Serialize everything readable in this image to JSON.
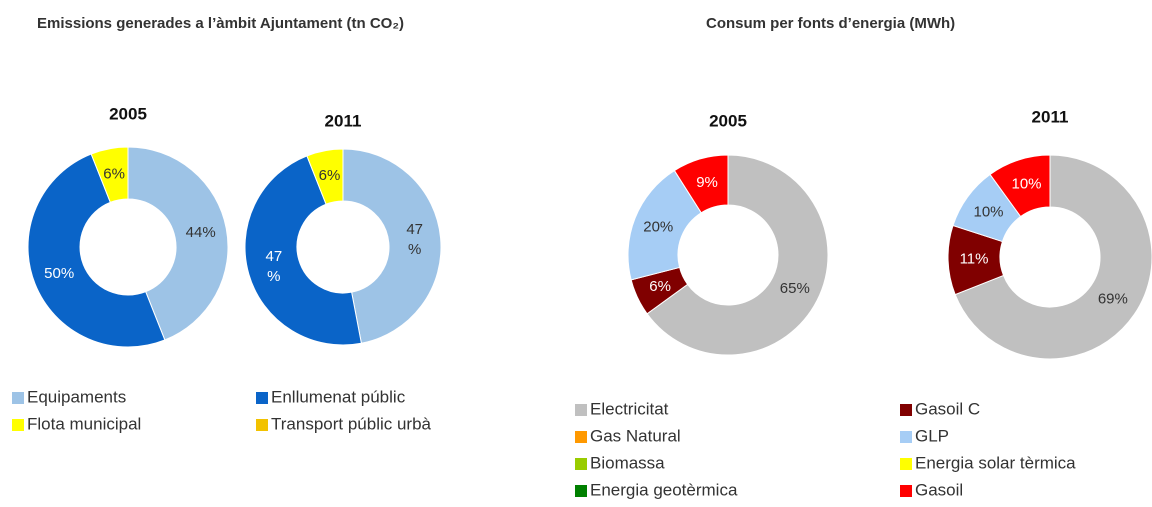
{
  "headings": [
    "Emissions generades a l’àmbit Ajuntament (tn CO₂)",
    "Consum per fonts d’energia (MWh)"
  ],
  "chart_data": [
    {
      "type": "donut",
      "title": "2005",
      "categories": [
        "Equipaments",
        "Enllumenat públic",
        "Flota municipal",
        "Transport públic urbà"
      ],
      "colors": [
        "#9dc3e6",
        "#0a64c8",
        "#ffff00",
        "#f2c200"
      ],
      "values": [
        44,
        50,
        6,
        0
      ],
      "value_labels": [
        "44%",
        "50%",
        "6%",
        null
      ]
    },
    {
      "type": "donut",
      "title": "2011",
      "categories": [
        "Equipaments",
        "Enllumenat públic",
        "Flota municipal",
        "Transport públic urbà"
      ],
      "colors": [
        "#9dc3e6",
        "#0a64c8",
        "#ffff00",
        "#f2c200"
      ],
      "values": [
        47,
        47,
        6,
        0
      ],
      "value_labels": [
        "47\n%",
        "47\n%",
        "6%",
        null
      ]
    },
    {
      "type": "donut",
      "title": "2005",
      "categories": [
        "Electricitat",
        "Gasoil C",
        "Gas Natural",
        "GLP",
        "Biomassa",
        "Energia solar tèrmica",
        "Energia geotèrmica",
        "Gasoil"
      ],
      "colors": [
        "#c0c0c0",
        "#800000",
        "#ff9900",
        "#a6cdf5",
        "#99cc00",
        "#ffff00",
        "#008000",
        "#ff0000"
      ],
      "values": [
        65,
        6,
        0,
        20,
        0,
        0,
        0,
        9
      ],
      "value_labels": [
        "65%",
        "6%",
        null,
        "20%",
        null,
        null,
        null,
        "9%"
      ]
    },
    {
      "type": "donut",
      "title": "2011",
      "categories": [
        "Electricitat",
        "Gasoil C",
        "Gas Natural",
        "GLP",
        "Biomassa",
        "Energia solar tèrmica",
        "Energia geotèrmica",
        "Gasoil"
      ],
      "colors": [
        "#c0c0c0",
        "#800000",
        "#ff9900",
        "#a6cdf5",
        "#99cc00",
        "#ffff00",
        "#008000",
        "#ff0000"
      ],
      "values": [
        69,
        11,
        0,
        10,
        0,
        0,
        0,
        10
      ],
      "value_labels": [
        "69%",
        "11%",
        null,
        "10%",
        null,
        null,
        null,
        "10%"
      ]
    }
  ]
}
